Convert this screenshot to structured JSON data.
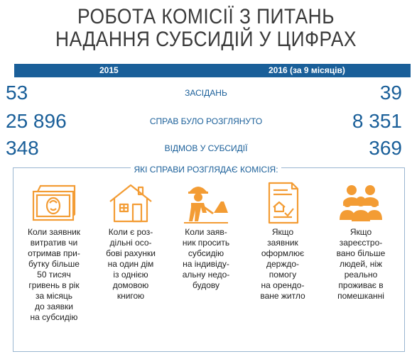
{
  "title": {
    "line1": "РОБОТА КОМІСІЇ З ПИТАНЬ",
    "line2": "НАДАННЯ СУБСИДІЙ У ЦИФРАХ"
  },
  "header": {
    "year1": "2015",
    "year2": "2016 (за 9 місяців)"
  },
  "stats": [
    {
      "left": "53",
      "label": "ЗАСІДАНЬ",
      "right": "39"
    },
    {
      "left": "25 896",
      "label": "СПРАВ БУЛО РОЗГЛЯНУТО",
      "right": "8 351"
    },
    {
      "left": "348",
      "label": "ВІДМОВ У СУБСИДІЇ",
      "right": "369"
    }
  ],
  "cases": {
    "heading": "ЯКІ СПРАВИ РОЗГЛЯДАЄ КОМІСІЯ:",
    "items": [
      {
        "icon": "money-icon",
        "text": "Коли заявник\nвитратив чи\nотримав при-\nбутку більше\n50 тисяч\nгривень в рік\nза місяць\nдо заявки\nна субсидію"
      },
      {
        "icon": "house-icon",
        "text": "Коли є роз-\nдільні осо-\nбові рахунки\nна один дім\nіз однією\nдомовою\nкнигою"
      },
      {
        "icon": "construction-worker-icon",
        "text": "Коли заяв-\nник просить\nсубсидію\nна індивіду-\nальну недо-\nбудову"
      },
      {
        "icon": "document-icon",
        "text": "Якщо\nзаявник\nоформлює\nдерждо-\nпомогу\nна орендо-\nване житло"
      },
      {
        "icon": "people-group-icon",
        "text": "Якщо\nзареєстро-\nвано більше\nлюдей, ніж\nреально\nпроживає в\nпомешканні"
      }
    ]
  },
  "colors": {
    "accent": "#1a5f99",
    "icon": "#f39c34",
    "border": "#9ab6d1"
  }
}
